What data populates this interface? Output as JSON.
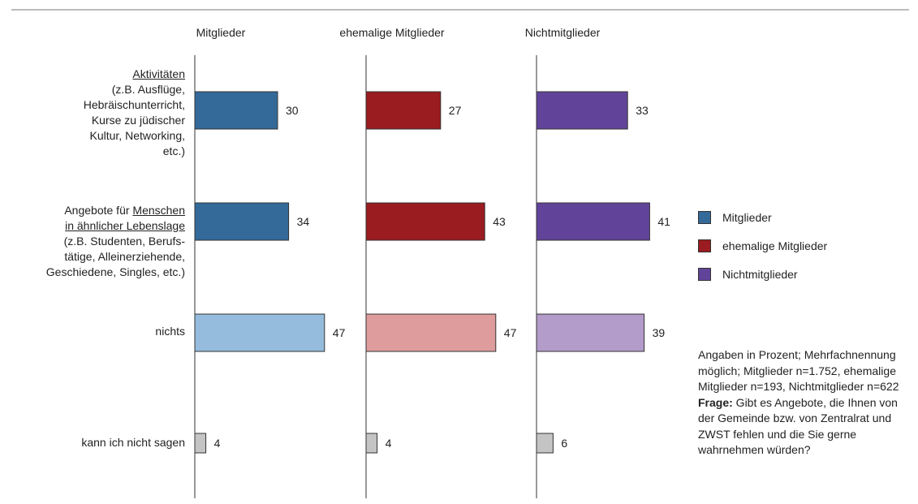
{
  "chart_data": {
    "type": "bar",
    "orientation": "horizontal",
    "panels": [
      "Mitglieder",
      "ehemalige Mitglieder",
      "Nichtmitglieder"
    ],
    "categories": [
      {
        "parts": [
          {
            "text": "Aktivitäten",
            "underline": true,
            "br": true
          },
          {
            "text": "(z.B. Ausflüge,",
            "br": true
          },
          {
            "text": "Hebräischunterricht,",
            "br": true
          },
          {
            "text": "Kurse zu jüdischer",
            "br": true
          },
          {
            "text": "Kultur, Networking,",
            "br": true
          },
          {
            "text": "etc.)"
          }
        ]
      },
      {
        "parts": [
          {
            "text": "Angebote für "
          },
          {
            "text": "Menschen",
            "underline": true,
            "br": true
          },
          {
            "text": "in ähnlicher Lebenslage",
            "underline": true,
            "br": true
          },
          {
            "text": "(z.B. Studenten, Berufs-",
            "br": true
          },
          {
            "text": "tätige, Alleinerziehende,",
            "br": true
          },
          {
            "text": "Geschiedene, Singles, etc.)"
          }
        ]
      },
      {
        "parts": [
          {
            "text": "nichts"
          }
        ]
      },
      {
        "parts": [
          {
            "text": "kann ich nicht sagen"
          }
        ]
      }
    ],
    "series": [
      {
        "name": "Mitglieder",
        "values": [
          30,
          34,
          47,
          4
        ]
      },
      {
        "name": "ehemalige Mitglieder",
        "values": [
          27,
          43,
          47,
          4
        ]
      },
      {
        "name": "Nichtmitglieder",
        "values": [
          33,
          41,
          39,
          6
        ]
      }
    ],
    "bar_colors": [
      [
        "#336a99",
        "#336a99",
        "#95bcdd",
        "#c4c4c4"
      ],
      [
        "#9a1b20",
        "#9a1b20",
        "#de9c9c",
        "#c4c4c4"
      ],
      [
        "#61449a",
        "#61449a",
        "#b39bca",
        "#c4c4c4"
      ]
    ],
    "legend": {
      "position": "right",
      "items": [
        {
          "label": "Mitglieder",
          "color": "#336a99"
        },
        {
          "label": "ehemalige Mitglieder",
          "color": "#9a1b20"
        },
        {
          "label": "Nichtmitglieder",
          "color": "#61449a"
        }
      ]
    }
  },
  "note": {
    "text": "Angaben in Prozent; Mehrfachnennung möglich; Mitglieder n=1.752, ehemalige Mitglieder n=193, Nichtmitglieder n=622",
    "question_label": "Frage:",
    "question_text": " Gibt es Angebote, die Ihnen von der Gemeinde bzw. von Zentralrat und ZWST fehlen und die Sie gerne wahrnehmen würden?"
  }
}
